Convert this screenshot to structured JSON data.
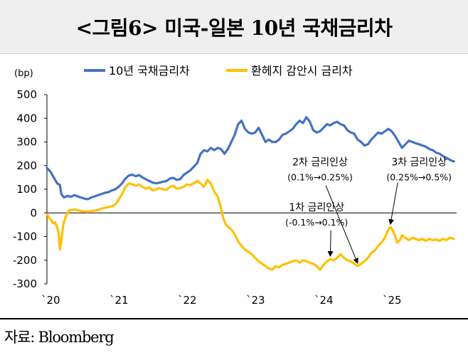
{
  "title": "<그림6> 미국-일본 10년 국채금리차",
  "source": "자료: Bloomberg",
  "chart_data": {
    "type": "line",
    "yunit": "(bp)",
    "ylim": [
      -300,
      500
    ],
    "yticks": [
      500,
      400,
      300,
      200,
      100,
      0,
      -100,
      -200,
      -300
    ],
    "xlim": [
      2020.0,
      2026.0
    ],
    "xticks": [
      {
        "x": 2020.0,
        "label": "`20"
      },
      {
        "x": 2021.0,
        "label": "`21"
      },
      {
        "x": 2022.0,
        "label": "`22"
      },
      {
        "x": 2023.0,
        "label": "`23"
      },
      {
        "x": 2024.0,
        "label": "`24"
      },
      {
        "x": 2025.0,
        "label": "`25"
      }
    ],
    "legend_position": "top",
    "series": [
      {
        "name": "10년 국채금리차",
        "color": "#4472C4",
        "points": [
          [
            2020.0,
            190
          ],
          [
            2020.05,
            175
          ],
          [
            2020.1,
            150
          ],
          [
            2020.15,
            125
          ],
          [
            2020.19,
            118
          ],
          [
            2020.21,
            80
          ],
          [
            2020.25,
            65
          ],
          [
            2020.3,
            72
          ],
          [
            2020.35,
            68
          ],
          [
            2020.4,
            75
          ],
          [
            2020.5,
            65
          ],
          [
            2020.55,
            60
          ],
          [
            2020.6,
            58
          ],
          [
            2020.65,
            65
          ],
          [
            2020.7,
            70
          ],
          [
            2020.75,
            75
          ],
          [
            2020.8,
            80
          ],
          [
            2020.85,
            85
          ],
          [
            2020.9,
            88
          ],
          [
            2020.95,
            95
          ],
          [
            2021.0,
            100
          ],
          [
            2021.05,
            110
          ],
          [
            2021.1,
            125
          ],
          [
            2021.15,
            145
          ],
          [
            2021.2,
            158
          ],
          [
            2021.25,
            162
          ],
          [
            2021.3,
            155
          ],
          [
            2021.35,
            160
          ],
          [
            2021.4,
            150
          ],
          [
            2021.45,
            142
          ],
          [
            2021.5,
            135
          ],
          [
            2021.55,
            128
          ],
          [
            2021.6,
            125
          ],
          [
            2021.65,
            128
          ],
          [
            2021.7,
            132
          ],
          [
            2021.75,
            135
          ],
          [
            2021.8,
            145
          ],
          [
            2021.85,
            148
          ],
          [
            2021.9,
            140
          ],
          [
            2021.95,
            142
          ],
          [
            2022.0,
            160
          ],
          [
            2022.05,
            170
          ],
          [
            2022.1,
            180
          ],
          [
            2022.15,
            195
          ],
          [
            2022.2,
            210
          ],
          [
            2022.25,
            250
          ],
          [
            2022.3,
            265
          ],
          [
            2022.35,
            260
          ],
          [
            2022.4,
            275
          ],
          [
            2022.45,
            265
          ],
          [
            2022.5,
            275
          ],
          [
            2022.55,
            270
          ],
          [
            2022.6,
            250
          ],
          [
            2022.65,
            270
          ],
          [
            2022.7,
            300
          ],
          [
            2022.75,
            330
          ],
          [
            2022.8,
            375
          ],
          [
            2022.85,
            390
          ],
          [
            2022.9,
            355
          ],
          [
            2022.95,
            340
          ],
          [
            2023.0,
            335
          ],
          [
            2023.05,
            340
          ],
          [
            2023.1,
            360
          ],
          [
            2023.15,
            330
          ],
          [
            2023.2,
            300
          ],
          [
            2023.25,
            310
          ],
          [
            2023.3,
            300
          ],
          [
            2023.35,
            300
          ],
          [
            2023.4,
            310
          ],
          [
            2023.45,
            330
          ],
          [
            2023.5,
            335
          ],
          [
            2023.55,
            345
          ],
          [
            2023.6,
            355
          ],
          [
            2023.65,
            375
          ],
          [
            2023.7,
            390
          ],
          [
            2023.75,
            380
          ],
          [
            2023.8,
            405
          ],
          [
            2023.85,
            385
          ],
          [
            2023.9,
            350
          ],
          [
            2023.95,
            340
          ],
          [
            2024.0,
            345
          ],
          [
            2024.05,
            360
          ],
          [
            2024.1,
            375
          ],
          [
            2024.15,
            370
          ],
          [
            2024.2,
            380
          ],
          [
            2024.25,
            385
          ],
          [
            2024.3,
            375
          ],
          [
            2024.35,
            370
          ],
          [
            2024.4,
            350
          ],
          [
            2024.45,
            340
          ],
          [
            2024.5,
            335
          ],
          [
            2024.55,
            310
          ],
          [
            2024.6,
            300
          ],
          [
            2024.65,
            285
          ],
          [
            2024.7,
            290
          ],
          [
            2024.75,
            310
          ],
          [
            2024.8,
            325
          ],
          [
            2024.85,
            340
          ],
          [
            2024.9,
            335
          ],
          [
            2024.95,
            345
          ],
          [
            2025.0,
            355
          ],
          [
            2025.05,
            345
          ],
          [
            2025.1,
            325
          ],
          [
            2025.15,
            300
          ],
          [
            2025.2,
            275
          ],
          [
            2025.25,
            290
          ],
          [
            2025.3,
            305
          ],
          [
            2025.35,
            300
          ],
          [
            2025.4,
            295
          ],
          [
            2025.45,
            290
          ],
          [
            2025.5,
            285
          ],
          [
            2025.55,
            280
          ],
          [
            2025.6,
            270
          ],
          [
            2025.65,
            265
          ],
          [
            2025.7,
            255
          ],
          [
            2025.75,
            250
          ],
          [
            2025.8,
            240
          ],
          [
            2025.85,
            232
          ],
          [
            2025.9,
            225
          ],
          [
            2025.93,
            220
          ],
          [
            2025.96,
            218
          ]
        ]
      },
      {
        "name": "환헤지 감안시 금리차",
        "color": "#FFC000",
        "points": [
          [
            2020.0,
            -5
          ],
          [
            2020.03,
            -20
          ],
          [
            2020.06,
            -30
          ],
          [
            2020.09,
            -45
          ],
          [
            2020.12,
            -40
          ],
          [
            2020.15,
            -60
          ],
          [
            2020.17,
            -80
          ],
          [
            2020.19,
            -155
          ],
          [
            2020.21,
            -120
          ],
          [
            2020.24,
            -50
          ],
          [
            2020.27,
            -20
          ],
          [
            2020.32,
            10
          ],
          [
            2020.4,
            15
          ],
          [
            2020.5,
            8
          ],
          [
            2020.6,
            5
          ],
          [
            2020.7,
            10
          ],
          [
            2020.75,
            12
          ],
          [
            2020.8,
            18
          ],
          [
            2020.85,
            22
          ],
          [
            2020.9,
            25
          ],
          [
            2020.95,
            28
          ],
          [
            2021.0,
            35
          ],
          [
            2021.05,
            55
          ],
          [
            2021.1,
            80
          ],
          [
            2021.15,
            110
          ],
          [
            2021.2,
            125
          ],
          [
            2021.25,
            120
          ],
          [
            2021.3,
            115
          ],
          [
            2021.35,
            120
          ],
          [
            2021.4,
            110
          ],
          [
            2021.45,
            102
          ],
          [
            2021.5,
            108
          ],
          [
            2021.55,
            95
          ],
          [
            2021.6,
            100
          ],
          [
            2021.65,
            105
          ],
          [
            2021.7,
            100
          ],
          [
            2021.75,
            98
          ],
          [
            2021.8,
            110
          ],
          [
            2021.85,
            115
          ],
          [
            2021.9,
            102
          ],
          [
            2021.95,
            105
          ],
          [
            2022.0,
            110
          ],
          [
            2022.05,
            120
          ],
          [
            2022.1,
            118
          ],
          [
            2022.15,
            125
          ],
          [
            2022.2,
            135
          ],
          [
            2022.25,
            125
          ],
          [
            2022.3,
            110
          ],
          [
            2022.35,
            140
          ],
          [
            2022.4,
            125
          ],
          [
            2022.45,
            90
          ],
          [
            2022.5,
            70
          ],
          [
            2022.55,
            20
          ],
          [
            2022.58,
            -20
          ],
          [
            2022.62,
            -50
          ],
          [
            2022.66,
            -60
          ],
          [
            2022.7,
            -70
          ],
          [
            2022.75,
            -90
          ],
          [
            2022.8,
            -120
          ],
          [
            2022.85,
            -140
          ],
          [
            2022.9,
            -155
          ],
          [
            2022.95,
            -165
          ],
          [
            2023.0,
            -175
          ],
          [
            2023.05,
            -190
          ],
          [
            2023.1,
            -205
          ],
          [
            2023.15,
            -215
          ],
          [
            2023.2,
            -225
          ],
          [
            2023.25,
            -235
          ],
          [
            2023.3,
            -240
          ],
          [
            2023.35,
            -225
          ],
          [
            2023.4,
            -230
          ],
          [
            2023.45,
            -220
          ],
          [
            2023.5,
            -215
          ],
          [
            2023.55,
            -210
          ],
          [
            2023.6,
            -205
          ],
          [
            2023.65,
            -200
          ],
          [
            2023.7,
            -210
          ],
          [
            2023.75,
            -200
          ],
          [
            2023.8,
            -205
          ],
          [
            2023.85,
            -210
          ],
          [
            2023.9,
            -215
          ],
          [
            2023.95,
            -225
          ],
          [
            2024.0,
            -240
          ],
          [
            2024.05,
            -220
          ],
          [
            2024.1,
            -205
          ],
          [
            2024.15,
            -195
          ],
          [
            2024.2,
            -200
          ],
          [
            2024.25,
            -190
          ],
          [
            2024.3,
            -175
          ],
          [
            2024.35,
            -190
          ],
          [
            2024.4,
            -200
          ],
          [
            2024.45,
            -205
          ],
          [
            2024.5,
            -215
          ],
          [
            2024.55,
            -225
          ],
          [
            2024.6,
            -215
          ],
          [
            2024.65,
            -205
          ],
          [
            2024.7,
            -190
          ],
          [
            2024.75,
            -170
          ],
          [
            2024.8,
            -160
          ],
          [
            2024.85,
            -140
          ],
          [
            2024.9,
            -125
          ],
          [
            2024.95,
            -105
          ],
          [
            2025.0,
            -70
          ],
          [
            2025.03,
            -60
          ],
          [
            2025.07,
            -75
          ],
          [
            2025.1,
            -100
          ],
          [
            2025.13,
            -125
          ],
          [
            2025.17,
            -115
          ],
          [
            2025.2,
            -95
          ],
          [
            2025.25,
            -105
          ],
          [
            2025.3,
            -115
          ],
          [
            2025.35,
            -105
          ],
          [
            2025.4,
            -110
          ],
          [
            2025.45,
            -115
          ],
          [
            2025.5,
            -110
          ],
          [
            2025.55,
            -118
          ],
          [
            2025.6,
            -110
          ],
          [
            2025.65,
            -115
          ],
          [
            2025.7,
            -112
          ],
          [
            2025.75,
            -118
          ],
          [
            2025.8,
            -110
          ],
          [
            2025.85,
            -115
          ],
          [
            2025.9,
            -105
          ],
          [
            2025.96,
            -110
          ]
        ]
      }
    ],
    "annotations": [
      {
        "lines": [
          "1차 금리인상",
          "(-0.1%→0.1%)"
        ],
        "target": [
          2024.15,
          -195
        ],
        "label_at": [
          2023.95,
          -20
        ]
      },
      {
        "lines": [
          "2차 금리인상",
          "(0.1%→0.25%)"
        ],
        "target": [
          2024.55,
          -225
        ],
        "label_at": [
          2024.0,
          170
        ]
      },
      {
        "lines": [
          "3차 금리인상",
          "(0.25%→0.5%)"
        ],
        "target": [
          2025.03,
          -60
        ],
        "label_at": [
          2025.45,
          170
        ]
      }
    ]
  }
}
